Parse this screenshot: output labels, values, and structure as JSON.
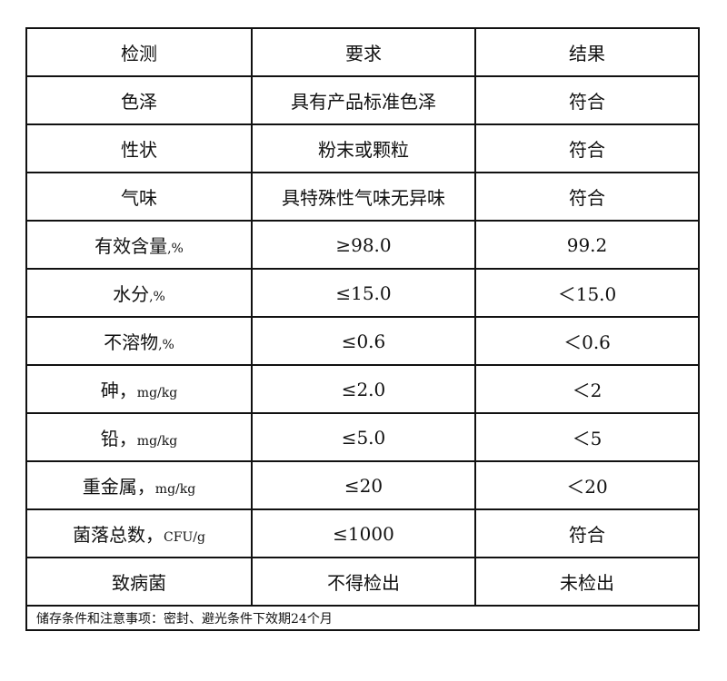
{
  "headers": [
    "检测",
    "要求",
    "结果"
  ],
  "rows": [
    {
      "item": "色泽",
      "unit": "",
      "requirement": "具有产品标准色泽",
      "result": "符合"
    },
    {
      "item": "性状",
      "unit": "",
      "requirement": "粉末或颗粒",
      "result": "符合"
    },
    {
      "item": "气味",
      "unit": "",
      "requirement": "具特殊性气味无异味",
      "result": "符合"
    },
    {
      "item": "有效含量",
      "unit": ",%",
      "requirement": "≥98.0",
      "result": "99.2"
    },
    {
      "item": "水分",
      "unit": ",%",
      "requirement": "≤15.0",
      "result": "＜15.0"
    },
    {
      "item": "不溶物",
      "unit": ",%",
      "requirement": "≤0.6",
      "result": "＜0.6"
    },
    {
      "item": "砷，",
      "unit": "mg/kg",
      "requirement": "≤2.0",
      "result": "＜2"
    },
    {
      "item": "铅，",
      "unit": "mg/kg",
      "requirement": "≤5.0",
      "result": "＜5"
    },
    {
      "item": "重金属，",
      "unit": "mg/kg",
      "requirement": "≤20",
      "result": "＜20"
    },
    {
      "item": "菌落总数，",
      "unit": "CFU/g",
      "requirement": "≤1000",
      "result": "符合"
    },
    {
      "item": "致病菌",
      "unit": "",
      "requirement": "不得检出",
      "result": "未检出"
    }
  ],
  "footer": "储存条件和注意事项：密封、避光条件下效期24个月"
}
